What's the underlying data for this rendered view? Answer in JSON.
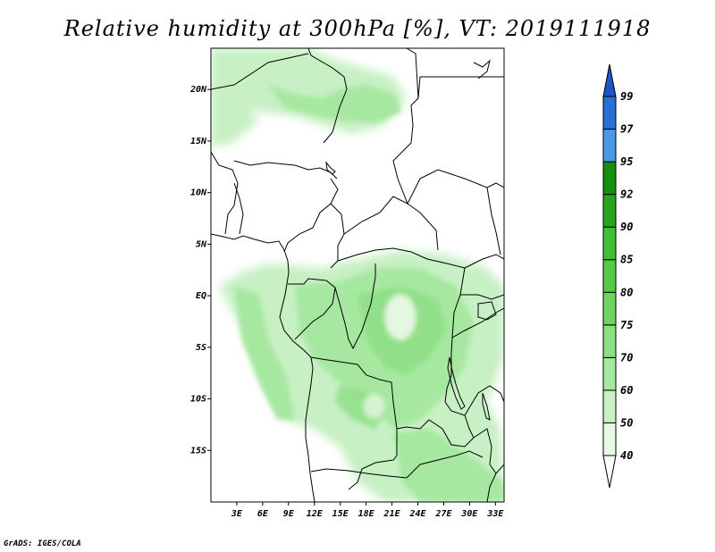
{
  "title": "Relative humidity at 300hPa [%], VT: 2019111918",
  "credit": "GrADS: IGES/COLA",
  "map": {
    "lon_range": [
      0,
      34
    ],
    "lat_range": [
      -20,
      24
    ],
    "lon_ticks": [
      "3E",
      "6E",
      "9E",
      "12E",
      "15E",
      "18E",
      "21E",
      "24E",
      "27E",
      "30E",
      "33E"
    ],
    "lat_ticks": [
      "20N",
      "15N",
      "10N",
      "5N",
      "EQ",
      "5S",
      "10S",
      "15S"
    ],
    "background": "#ffffff",
    "boundary_color": "#000000"
  },
  "colorbar": {
    "levels": [
      "40",
      "50",
      "60",
      "70",
      "75",
      "80",
      "85",
      "90",
      "92",
      "95",
      "97",
      "99"
    ],
    "colors": [
      "#ffffff",
      "#e6fae6",
      "#c7f0c4",
      "#a6e8a0",
      "#8cde83",
      "#6fd460",
      "#55cb45",
      "#3fbf34",
      "#28a51f",
      "#158f10",
      "#4c98e8",
      "#2a6fd6",
      "#1f55c4"
    ]
  },
  "chart_data": {
    "type": "heatmap",
    "title": "Relative humidity at 300hPa [%], VT: 2019111918",
    "variable": "Relative humidity at 300hPa",
    "units": "%",
    "valid_time": "2019111918",
    "x_ticks": [
      "3E",
      "6E",
      "9E",
      "12E",
      "15E",
      "18E",
      "21E",
      "24E",
      "27E",
      "30E",
      "33E"
    ],
    "y_ticks": [
      "20N",
      "15N",
      "10N",
      "5N",
      "EQ",
      "5S",
      "10S",
      "15S"
    ],
    "contour_levels": [
      40,
      50,
      60,
      70,
      75,
      80,
      85,
      90,
      92,
      95,
      97,
      99
    ]
  }
}
